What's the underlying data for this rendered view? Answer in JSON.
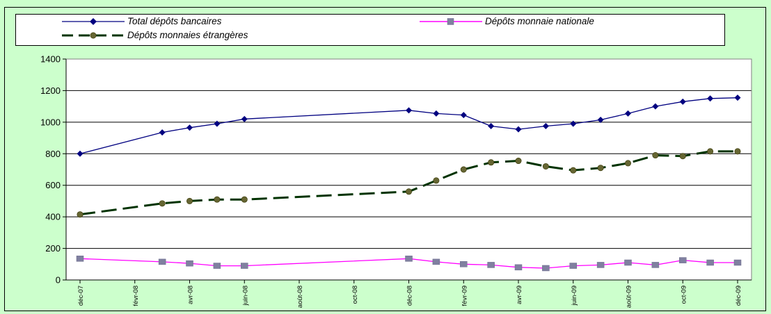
{
  "chart_data": {
    "type": "line",
    "title": "",
    "xlabel": "",
    "ylabel": "",
    "ylim": [
      0,
      1400
    ],
    "yticks": [
      0,
      200,
      400,
      600,
      800,
      1000,
      1200,
      1400
    ],
    "grid": true,
    "legend_position": "top",
    "x_axis_labels": [
      {
        "label": "déc-07",
        "x": 0
      },
      {
        "label": "févr-08",
        "x": 2
      },
      {
        "label": "avr-08",
        "x": 4
      },
      {
        "label": "juin-08",
        "x": 6
      },
      {
        "label": "août-08",
        "x": 8
      },
      {
        "label": "oct-08",
        "x": 10
      },
      {
        "label": "déc-08",
        "x": 12
      },
      {
        "label": "févr-09",
        "x": 14
      },
      {
        "label": "avr-09",
        "x": 16
      },
      {
        "label": "juin-09",
        "x": 18
      },
      {
        "label": "août-09",
        "x": 20
      },
      {
        "label": "oct-09",
        "x": 22
      },
      {
        "label": "déc-09",
        "x": 24
      }
    ],
    "x": [
      0,
      3,
      4,
      5,
      6,
      12,
      13,
      14,
      15,
      16,
      17,
      18,
      19,
      20,
      21,
      22,
      23,
      24
    ],
    "series": [
      {
        "name": "Total dépôts bancaires",
        "color": "#000080",
        "marker": "diamond",
        "line_style": "solid",
        "values": [
          800,
          935,
          965,
          990,
          1020,
          1075,
          1055,
          1045,
          975,
          955,
          975,
          990,
          1015,
          1055,
          1100,
          1130,
          1150,
          1155
        ]
      },
      {
        "name": "Dépôts monnaie nationale",
        "color": "#ff00ff",
        "marker": "square",
        "line_style": "solid",
        "values": [
          135,
          115,
          105,
          90,
          90,
          135,
          115,
          100,
          95,
          80,
          75,
          90,
          95,
          110,
          95,
          125,
          110,
          110
        ]
      },
      {
        "name": "Dépôts monnaies étrangères",
        "color": "#003300",
        "marker": "circle",
        "marker_fill": "#666633",
        "line_style": "dashed",
        "values": [
          415,
          485,
          500,
          510,
          510,
          560,
          630,
          700,
          745,
          755,
          720,
          695,
          710,
          740,
          790,
          785,
          815,
          815
        ]
      }
    ]
  }
}
